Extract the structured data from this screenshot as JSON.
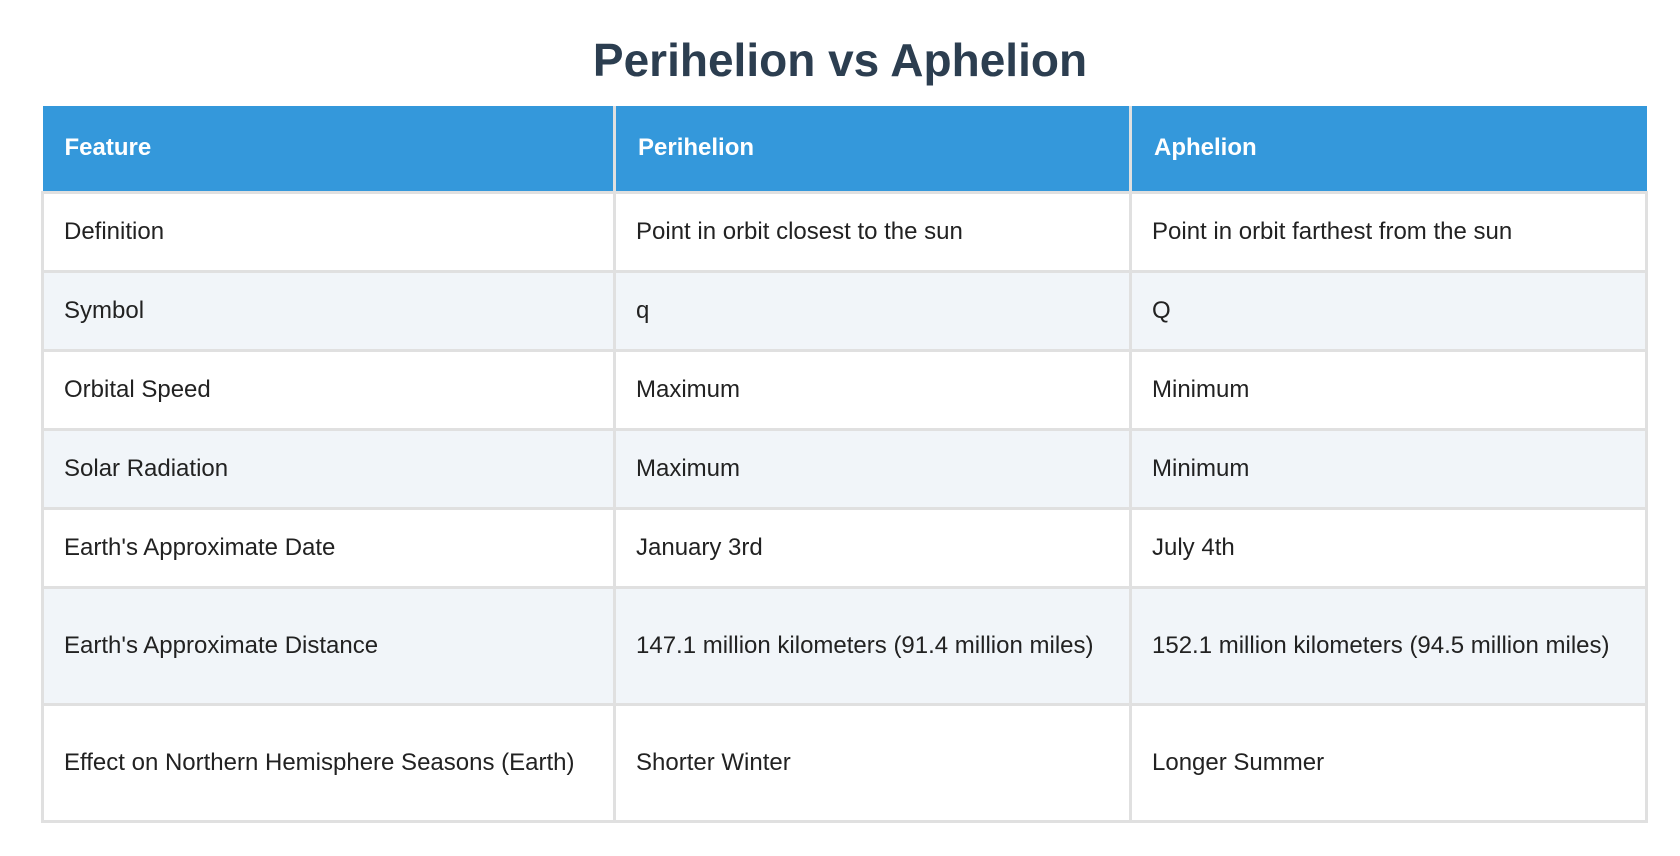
{
  "title": "Perihelion vs Aphelion",
  "table": {
    "headers": [
      "Feature",
      "Perihelion",
      "Aphelion"
    ],
    "rows": [
      [
        "Definition",
        "Point in orbit closest to the sun",
        "Point in orbit farthest from the sun"
      ],
      [
        "Symbol",
        "q",
        "Q"
      ],
      [
        "Orbital Speed",
        "Maximum",
        "Minimum"
      ],
      [
        "Solar Radiation",
        "Maximum",
        "Minimum"
      ],
      [
        "Earth's Approximate Date",
        "January 3rd",
        "July 4th"
      ],
      [
        "Earth's Approximate Distance",
        "147.1 million kilometers (91.4 million miles)",
        "152.1 million kilometers (94.5 million miles)"
      ],
      [
        "Effect on Northern Hemisphere Seasons (Earth)",
        "Shorter Winter",
        "Longer Summer"
      ]
    ]
  },
  "colors": {
    "title": "#2c3e50",
    "header_bg": "#3498db",
    "header_text": "#ffffff",
    "row_alt_bg": "#f1f5f9",
    "border": "#e0e0e0"
  }
}
